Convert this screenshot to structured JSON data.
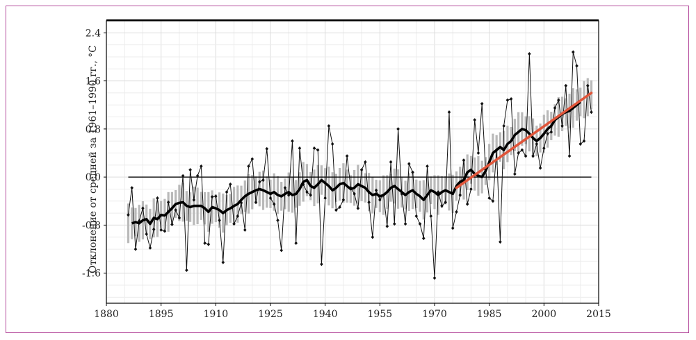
{
  "chart_data": {
    "type": "line",
    "title": "",
    "ylabel": "Отклонение от средней за 1961–1990 гг., °С",
    "xlabel": "",
    "xlim": [
      1880,
      2015
    ],
    "ylim": [
      -2.1,
      2.6
    ],
    "x_ticks": [
      1880,
      1895,
      1910,
      1925,
      1940,
      1955,
      1970,
      1985,
      2000,
      2015
    ],
    "x_tick_labels": [
      "1880",
      "1895",
      "1910",
      "1925",
      "1940",
      "1955",
      "1970",
      "1985",
      "2000",
      "2015"
    ],
    "y_ticks": [
      2.4,
      1.6,
      0.8,
      0.0,
      -0.8,
      -1.6
    ],
    "y_tick_labels": [
      "2.4",
      "1.6",
      "0.8",
      "0.0",
      "-0.8",
      "-1.6"
    ],
    "grid": true,
    "reference_line": 0.0,
    "annual": {
      "x": [
        1886,
        1887,
        1888,
        1889,
        1890,
        1891,
        1892,
        1893,
        1894,
        1895,
        1896,
        1897,
        1898,
        1899,
        1900,
        1901,
        1902,
        1903,
        1904,
        1905,
        1906,
        1907,
        1908,
        1909,
        1910,
        1911,
        1912,
        1913,
        1914,
        1915,
        1916,
        1917,
        1918,
        1919,
        1920,
        1921,
        1922,
        1923,
        1924,
        1925,
        1926,
        1927,
        1928,
        1929,
        1930,
        1931,
        1932,
        1933,
        1934,
        1935,
        1936,
        1937,
        1938,
        1939,
        1940,
        1941,
        1942,
        1943,
        1944,
        1945,
        1946,
        1947,
        1948,
        1949,
        1950,
        1951,
        1952,
        1953,
        1954,
        1955,
        1956,
        1957,
        1958,
        1959,
        1960,
        1961,
        1962,
        1963,
        1964,
        1965,
        1966,
        1967,
        1968,
        1969,
        1970,
        1971,
        1972,
        1973,
        1974,
        1975,
        1976,
        1977,
        1978,
        1979,
        1980,
        1981,
        1982,
        1983,
        1984,
        1985,
        1986,
        1987,
        1988,
        1989,
        1990,
        1991,
        1992,
        1993,
        1994,
        1995,
        1996,
        1997,
        1998,
        1999,
        2000,
        2001,
        2002,
        2003,
        2004,
        2005,
        2006,
        2007,
        2008,
        2009,
        2010,
        2011,
        2012,
        2013
      ],
      "y": [
        -0.63,
        -0.18,
        -1.2,
        -0.73,
        -0.52,
        -0.95,
        -1.18,
        -0.87,
        -0.35,
        -0.88,
        -0.9,
        -0.42,
        -0.79,
        -0.55,
        -0.68,
        0.02,
        -1.55,
        0.12,
        -0.38,
        0.02,
        0.18,
        -1.1,
        -1.12,
        -0.33,
        -0.32,
        -0.72,
        -1.42,
        -0.25,
        -0.12,
        -0.78,
        -0.65,
        -0.43,
        -0.88,
        0.18,
        0.3,
        -0.42,
        -0.08,
        -0.05,
        0.47,
        -0.35,
        -0.45,
        -0.72,
        -1.22,
        -0.18,
        -0.3,
        0.6,
        -1.1,
        0.48,
        -0.12,
        -0.25,
        -0.3,
        0.48,
        0.45,
        -1.45,
        -0.35,
        0.85,
        0.55,
        -0.55,
        -0.5,
        -0.38,
        0.35,
        -0.18,
        -0.28,
        -0.52,
        0.12,
        0.25,
        -0.42,
        -1.0,
        -0.22,
        -0.38,
        -0.3,
        -0.82,
        0.25,
        -0.78,
        0.8,
        -0.28,
        -0.78,
        0.22,
        0.08,
        -0.65,
        -0.78,
        -1.02,
        0.18,
        -0.65,
        -1.68,
        -0.25,
        -0.48,
        -0.42,
        1.08,
        -0.85,
        -0.58,
        -0.3,
        0.28,
        -0.45,
        -0.2,
        0.95,
        0.4,
        1.22,
        0.12,
        -0.35,
        -0.4,
        0.45,
        -1.08,
        0.85,
        1.28,
        1.3,
        0.05,
        0.4,
        0.45,
        0.35,
        2.05,
        0.35,
        0.55,
        0.15,
        0.48,
        0.72,
        0.75,
        1.15,
        1.28,
        0.85,
        1.52,
        0.35,
        2.08,
        1.85,
        0.55,
        0.6,
        1.52,
        1.08
      ]
    },
    "smoothed": {
      "x": [
        1887,
        1888,
        1889,
        1890,
        1891,
        1892,
        1893,
        1894,
        1895,
        1896,
        1897,
        1898,
        1899,
        1900,
        1901,
        1902,
        1903,
        1904,
        1905,
        1906,
        1907,
        1908,
        1909,
        1910,
        1911,
        1912,
        1913,
        1914,
        1915,
        1916,
        1917,
        1918,
        1919,
        1920,
        1921,
        1922,
        1923,
        1924,
        1925,
        1926,
        1927,
        1928,
        1929,
        1930,
        1931,
        1932,
        1933,
        1934,
        1935,
        1936,
        1937,
        1938,
        1939,
        1940,
        1941,
        1942,
        1943,
        1944,
        1945,
        1946,
        1947,
        1948,
        1949,
        1950,
        1951,
        1952,
        1953,
        1954,
        1955,
        1956,
        1957,
        1958,
        1959,
        1960,
        1961,
        1962,
        1963,
        1964,
        1965,
        1966,
        1967,
        1968,
        1969,
        1970,
        1971,
        1972,
        1973,
        1974,
        1975,
        1976,
        1977,
        1978,
        1979,
        1980,
        1981,
        1982,
        1983,
        1984,
        1985,
        1986,
        1987,
        1988,
        1989,
        1990,
        1991,
        1992,
        1993,
        1994,
        1995,
        1996,
        1997,
        1998,
        1999,
        2000,
        2001,
        2002,
        2003,
        2004,
        2005,
        2006,
        2007,
        2008,
        2009,
        2010
      ],
      "y": [
        -0.77,
        -0.75,
        -0.77,
        -0.72,
        -0.7,
        -0.78,
        -0.68,
        -0.7,
        -0.63,
        -0.64,
        -0.58,
        -0.52,
        -0.45,
        -0.43,
        -0.42,
        -0.48,
        -0.5,
        -0.48,
        -0.48,
        -0.48,
        -0.52,
        -0.58,
        -0.5,
        -0.52,
        -0.55,
        -0.6,
        -0.55,
        -0.52,
        -0.48,
        -0.45,
        -0.38,
        -0.32,
        -0.28,
        -0.25,
        -0.22,
        -0.2,
        -0.22,
        -0.25,
        -0.28,
        -0.25,
        -0.3,
        -0.32,
        -0.28,
        -0.25,
        -0.3,
        -0.28,
        -0.2,
        -0.08,
        -0.05,
        -0.15,
        -0.18,
        -0.12,
        -0.05,
        -0.1,
        -0.15,
        -0.22,
        -0.18,
        -0.12,
        -0.1,
        -0.15,
        -0.2,
        -0.18,
        -0.12,
        -0.15,
        -0.18,
        -0.25,
        -0.3,
        -0.28,
        -0.32,
        -0.3,
        -0.25,
        -0.18,
        -0.15,
        -0.2,
        -0.25,
        -0.3,
        -0.25,
        -0.22,
        -0.28,
        -0.32,
        -0.38,
        -0.3,
        -0.22,
        -0.25,
        -0.3,
        -0.25,
        -0.22,
        -0.25,
        -0.28,
        -0.15,
        -0.08,
        -0.05,
        0.08,
        0.12,
        0.05,
        0.02,
        0.0,
        0.1,
        0.25,
        0.4,
        0.45,
        0.5,
        0.45,
        0.55,
        0.6,
        0.7,
        0.75,
        0.8,
        0.78,
        0.72,
        0.65,
        0.6,
        0.65,
        0.72,
        0.8,
        0.85,
        0.95,
        1.0,
        1.05,
        1.08,
        1.1,
        1.15,
        1.2,
        1.25
      ]
    },
    "uncertainty_bars": {
      "x_start": 1886,
      "x_end": 2013,
      "band_halfwidth": 0.28
    },
    "trend": {
      "x": [
        1976,
        2013
      ],
      "y": [
        -0.18,
        1.4
      ],
      "color": "#e0553a"
    },
    "colors": {
      "annual": "#111111",
      "smoothed": "#000000",
      "bars": "#b9b9b9",
      "frame": "#b44a9c"
    }
  }
}
